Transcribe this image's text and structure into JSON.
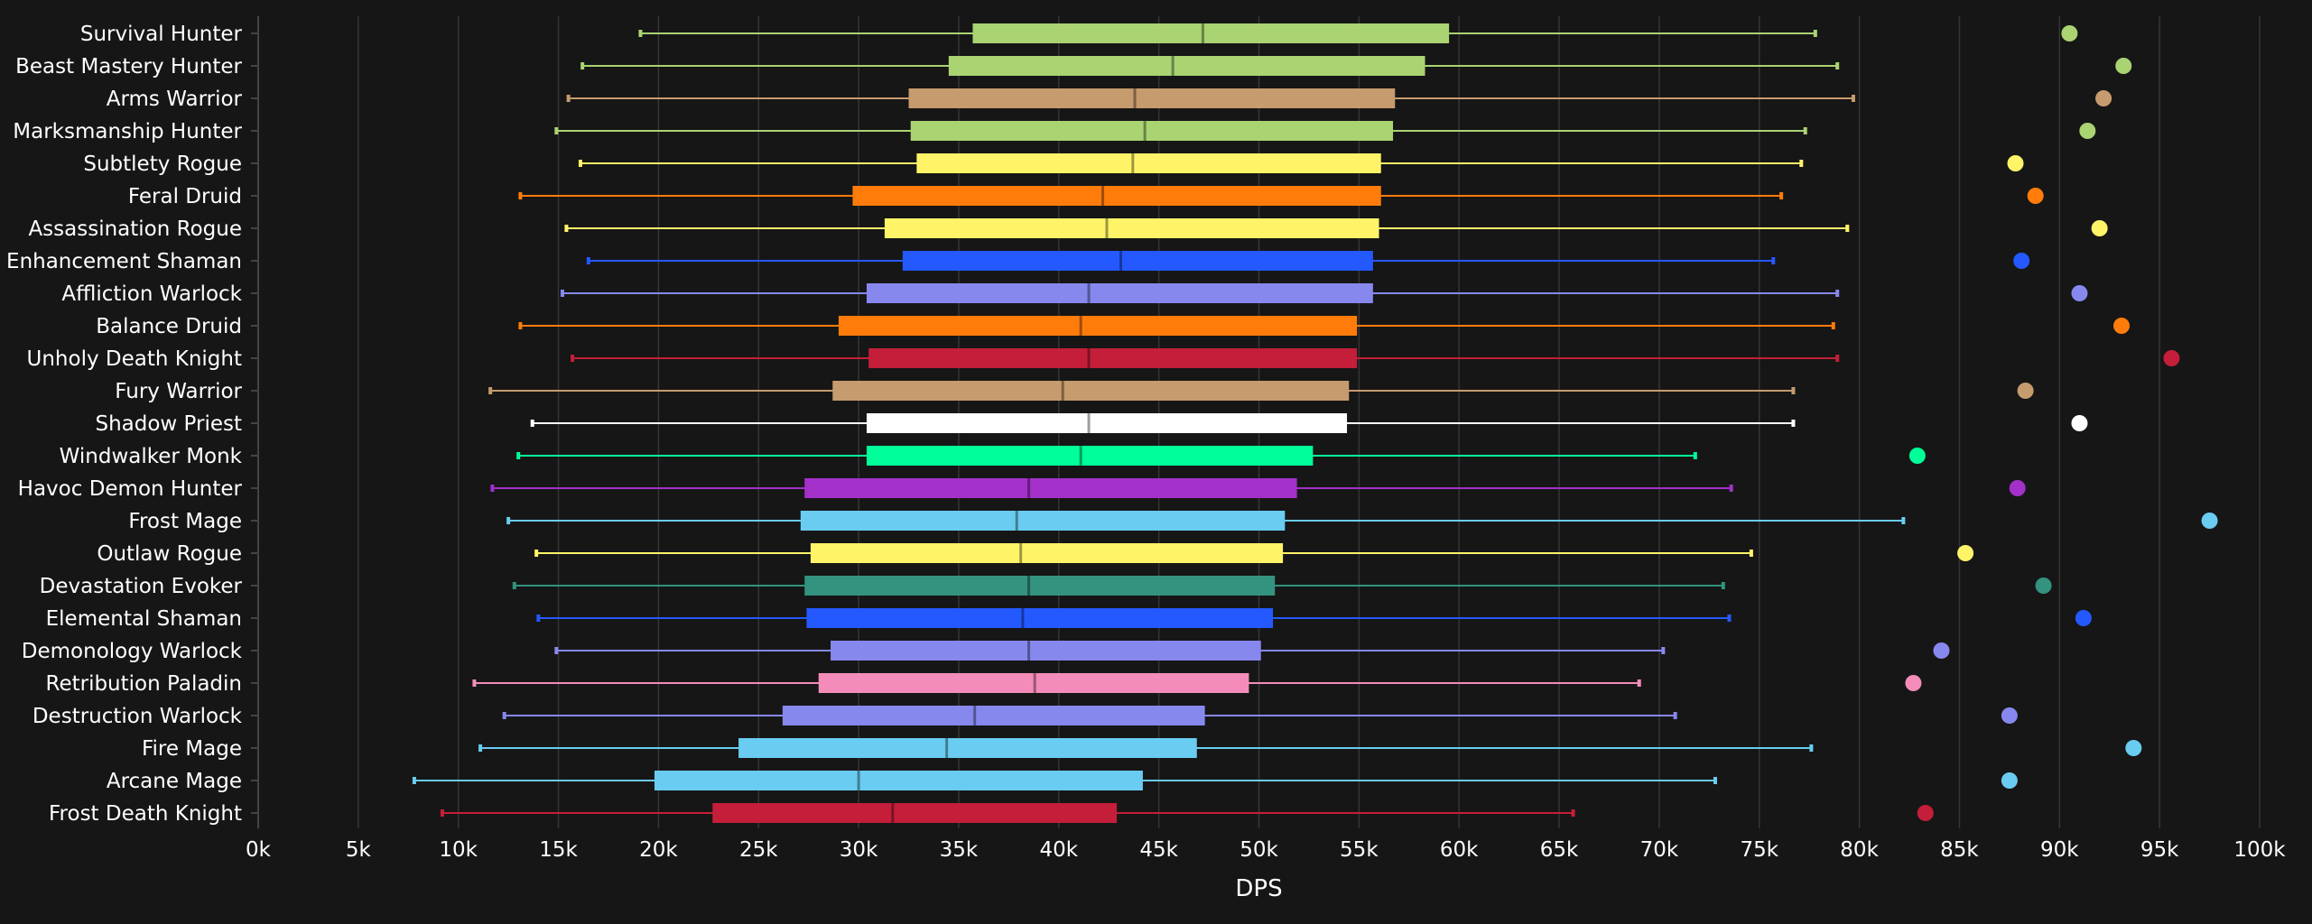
{
  "chart_data": {
    "type": "box",
    "title": "",
    "xlabel": "DPS",
    "ylabel": "",
    "xlim": [
      0,
      100000
    ],
    "x_ticks": [
      {
        "value": 0,
        "label": "0k"
      },
      {
        "value": 5000,
        "label": "5k"
      },
      {
        "value": 10000,
        "label": "10k"
      },
      {
        "value": 15000,
        "label": "15k"
      },
      {
        "value": 20000,
        "label": "20k"
      },
      {
        "value": 25000,
        "label": "25k"
      },
      {
        "value": 30000,
        "label": "30k"
      },
      {
        "value": 35000,
        "label": "35k"
      },
      {
        "value": 40000,
        "label": "40k"
      },
      {
        "value": 45000,
        "label": "45k"
      },
      {
        "value": 50000,
        "label": "50k"
      },
      {
        "value": 55000,
        "label": "55k"
      },
      {
        "value": 60000,
        "label": "60k"
      },
      {
        "value": 65000,
        "label": "65k"
      },
      {
        "value": 70000,
        "label": "70k"
      },
      {
        "value": 75000,
        "label": "75k"
      },
      {
        "value": 80000,
        "label": "80k"
      },
      {
        "value": 85000,
        "label": "85k"
      },
      {
        "value": 90000,
        "label": "90k"
      },
      {
        "value": 95000,
        "label": "95k"
      },
      {
        "value": 100000,
        "label": "100k"
      }
    ],
    "grid": true,
    "orientation": "horizontal",
    "series": [
      {
        "category": "Survival Hunter",
        "color": "#aad372",
        "min": 19100,
        "q1": 35700,
        "median": 47200,
        "q3": 59500,
        "max": 77800,
        "outlier": 90500
      },
      {
        "category": "Beast Mastery Hunter",
        "color": "#aad372",
        "min": 16200,
        "q1": 34500,
        "median": 45700,
        "q3": 58300,
        "max": 78900,
        "outlier": 93200
      },
      {
        "category": "Arms Warrior",
        "color": "#c69b6d",
        "min": 15500,
        "q1": 32500,
        "median": 43800,
        "q3": 56800,
        "max": 79700,
        "outlier": 92200
      },
      {
        "category": "Marksmanship Hunter",
        "color": "#aad372",
        "min": 14900,
        "q1": 32600,
        "median": 44300,
        "q3": 56700,
        "max": 77300,
        "outlier": 91400
      },
      {
        "category": "Subtlety Rogue",
        "color": "#fff468",
        "min": 16100,
        "q1": 32900,
        "median": 43700,
        "q3": 56100,
        "max": 77100,
        "outlier": 87800
      },
      {
        "category": "Feral Druid",
        "color": "#ff7c0a",
        "min": 13100,
        "q1": 29700,
        "median": 42200,
        "q3": 56100,
        "max": 76100,
        "outlier": 88800
      },
      {
        "category": "Assassination Rogue",
        "color": "#fff468",
        "min": 15400,
        "q1": 31300,
        "median": 42400,
        "q3": 56000,
        "max": 79400,
        "outlier": 92000
      },
      {
        "category": "Enhancement Shaman",
        "color": "#2459ff",
        "min": 16500,
        "q1": 32200,
        "median": 43100,
        "q3": 55700,
        "max": 75700,
        "outlier": 88100
      },
      {
        "category": "Affliction Warlock",
        "color": "#8788ee",
        "min": 15200,
        "q1": 30400,
        "median": 41500,
        "q3": 55700,
        "max": 78900,
        "outlier": 91000
      },
      {
        "category": "Balance Druid",
        "color": "#ff7c0a",
        "min": 13100,
        "q1": 29000,
        "median": 41100,
        "q3": 54900,
        "max": 78700,
        "outlier": 93100
      },
      {
        "category": "Unholy Death Knight",
        "color": "#c41e3a",
        "min": 15700,
        "q1": 30500,
        "median": 41500,
        "q3": 54900,
        "max": 78900,
        "outlier": 95600
      },
      {
        "category": "Fury Warrior",
        "color": "#c69b6d",
        "min": 11600,
        "q1": 28700,
        "median": 40200,
        "q3": 54500,
        "max": 76700,
        "outlier": 88300
      },
      {
        "category": "Shadow Priest",
        "color": "#ffffff",
        "min": 13700,
        "q1": 30400,
        "median": 41500,
        "q3": 54400,
        "max": 76700,
        "outlier": 91000
      },
      {
        "category": "Windwalker Monk",
        "color": "#00ff98",
        "min": 13000,
        "q1": 30400,
        "median": 41100,
        "q3": 52700,
        "max": 71800,
        "outlier": 82900
      },
      {
        "category": "Havoc Demon Hunter",
        "color": "#a330c9",
        "min": 11700,
        "q1": 27300,
        "median": 38500,
        "q3": 51900,
        "max": 73600,
        "outlier": 87900
      },
      {
        "category": "Frost Mage",
        "color": "#69ccf0",
        "min": 12500,
        "q1": 27100,
        "median": 37900,
        "q3": 51300,
        "max": 82200,
        "outlier": 97500
      },
      {
        "category": "Outlaw Rogue",
        "color": "#fff468",
        "min": 13900,
        "q1": 27600,
        "median": 38100,
        "q3": 51200,
        "max": 74600,
        "outlier": 85300
      },
      {
        "category": "Devastation Evoker",
        "color": "#33937f",
        "min": 12800,
        "q1": 27300,
        "median": 38500,
        "q3": 50800,
        "max": 73200,
        "outlier": 89200
      },
      {
        "category": "Elemental Shaman",
        "color": "#2459ff",
        "min": 14000,
        "q1": 27400,
        "median": 38200,
        "q3": 50700,
        "max": 73500,
        "outlier": 91200
      },
      {
        "category": "Demonology Warlock",
        "color": "#8788ee",
        "min": 14900,
        "q1": 28600,
        "median": 38500,
        "q3": 50100,
        "max": 70200,
        "outlier": 84100
      },
      {
        "category": "Retribution Paladin",
        "color": "#f48cba",
        "min": 10800,
        "q1": 28000,
        "median": 38800,
        "q3": 49500,
        "max": 69000,
        "outlier": 82700
      },
      {
        "category": "Destruction Warlock",
        "color": "#8788ee",
        "min": 12300,
        "q1": 26200,
        "median": 35800,
        "q3": 47300,
        "max": 70800,
        "outlier": 87500
      },
      {
        "category": "Fire Mage",
        "color": "#69ccf0",
        "min": 11100,
        "q1": 24000,
        "median": 34400,
        "q3": 46900,
        "max": 77600,
        "outlier": 93700
      },
      {
        "category": "Arcane Mage",
        "color": "#69ccf0",
        "min": 7800,
        "q1": 19800,
        "median": 30000,
        "q3": 44200,
        "max": 72800,
        "outlier": 87500
      },
      {
        "category": "Frost Death Knight",
        "color": "#c41e3a",
        "min": 9200,
        "q1": 22700,
        "median": 31700,
        "q3": 42900,
        "max": 65700,
        "outlier": 83300
      }
    ]
  }
}
